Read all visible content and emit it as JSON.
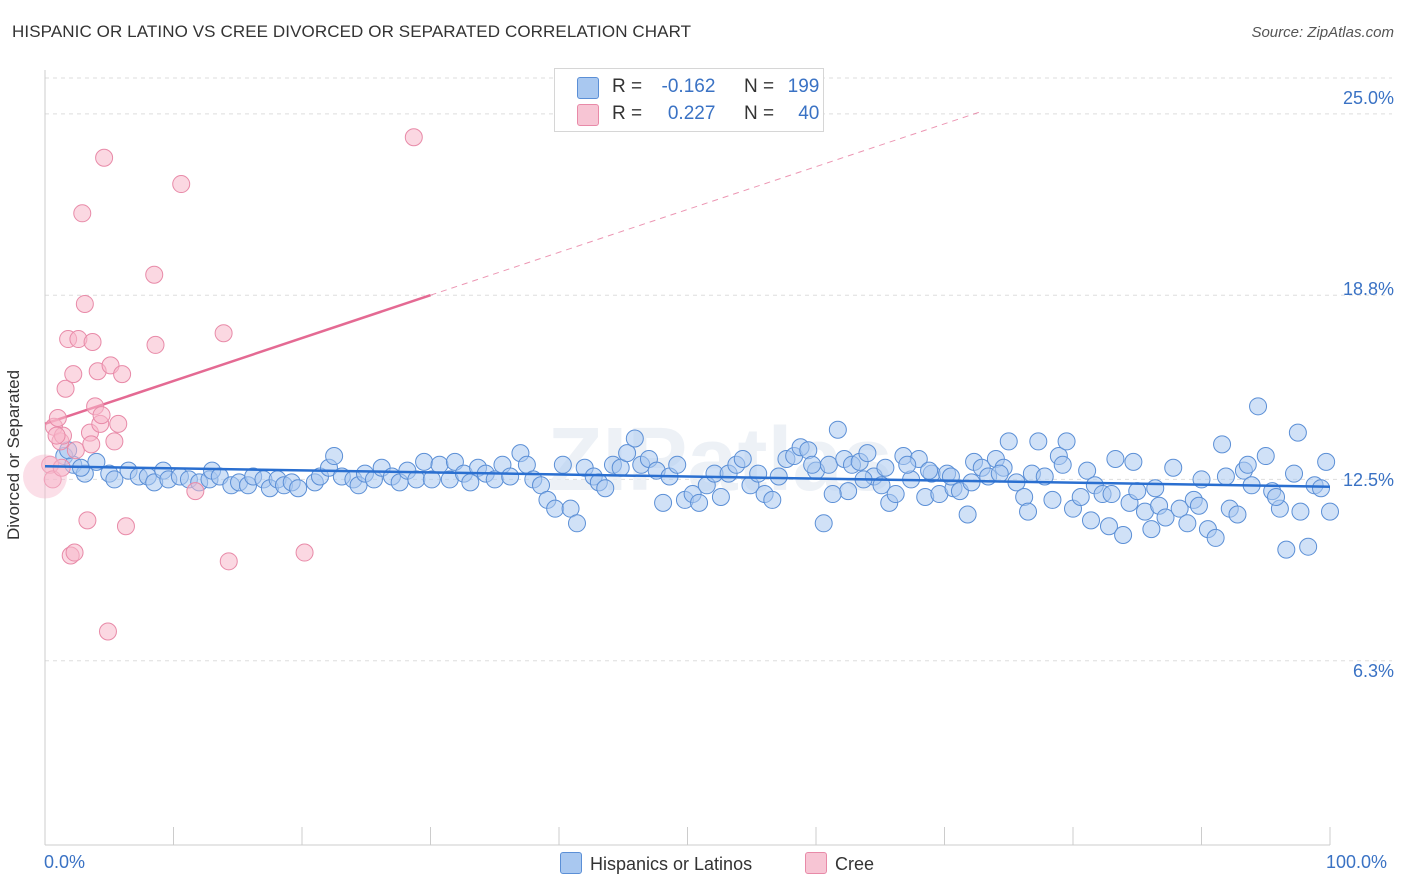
{
  "title": "HISPANIC OR LATINO VS CREE DIVORCED OR SEPARATED CORRELATION CHART",
  "source": "Source: ZipAtlas.com",
  "watermark": "ZIPatlas",
  "legend_top": {
    "rows": [
      {
        "r_label": "R =",
        "r_value": "-0.162",
        "n_label": "N =",
        "n_value": "199"
      },
      {
        "r_label": "R =",
        "r_value": "0.227",
        "n_label": "N =",
        "n_value": "40"
      }
    ]
  },
  "legend_bottom": [
    "Hispanics or Latinos",
    "Cree"
  ],
  "colors": {
    "blue_fill": "#a9c8f0",
    "blue_stroke": "#5b8fd6",
    "blue_line": "#2a6fd0",
    "pink_fill": "#f7b8cb",
    "pink_stroke": "#e88aa8",
    "pink_line": "#e46a93",
    "grid": "#dddddd",
    "tick_text": "#3a72c4"
  },
  "chart_data": {
    "type": "scatter",
    "xlabel": "",
    "ylabel": "Divorced or Separated",
    "xlim": [
      0,
      100
    ],
    "ylim": [
      0,
      26.5
    ],
    "y_ticks": [
      6.3,
      12.5,
      18.8,
      25.0
    ],
    "y_tick_labels": [
      "6.3%",
      "12.5%",
      "18.8%",
      "25.0%"
    ],
    "x_tick_labels": [
      "0.0%",
      "100.0%"
    ],
    "grid": true,
    "legend_position": "top-center",
    "series": [
      {
        "name": "Hispanics or Latinos",
        "trend": {
          "x0": 0,
          "y0": 12.95,
          "x1": 100,
          "y1": 12.25,
          "dashed_extension": false
        },
        "points": [
          [
            1.5,
            13.3
          ],
          [
            2.2,
            13.0
          ],
          [
            1.8,
            13.5
          ],
          [
            3.1,
            12.7
          ],
          [
            2.8,
            12.9
          ],
          [
            4.0,
            13.1
          ],
          [
            5.0,
            12.7
          ],
          [
            5.4,
            12.5
          ],
          [
            6.5,
            12.8
          ],
          [
            7.3,
            12.6
          ],
          [
            8.0,
            12.6
          ],
          [
            8.5,
            12.4
          ],
          [
            9.2,
            12.8
          ],
          [
            9.6,
            12.5
          ],
          [
            10.5,
            12.6
          ],
          [
            11.2,
            12.5
          ],
          [
            12.0,
            12.4
          ],
          [
            12.8,
            12.5
          ],
          [
            13.0,
            12.8
          ],
          [
            13.6,
            12.6
          ],
          [
            14.5,
            12.3
          ],
          [
            15.1,
            12.4
          ],
          [
            15.8,
            12.3
          ],
          [
            16.2,
            12.6
          ],
          [
            17.0,
            12.5
          ],
          [
            17.5,
            12.2
          ],
          [
            18.1,
            12.5
          ],
          [
            18.6,
            12.3
          ],
          [
            19.2,
            12.4
          ],
          [
            19.7,
            12.2
          ],
          [
            21.0,
            12.4
          ],
          [
            21.4,
            12.6
          ],
          [
            22.1,
            12.9
          ],
          [
            22.5,
            13.3
          ],
          [
            23.1,
            12.6
          ],
          [
            24.0,
            12.5
          ],
          [
            24.4,
            12.3
          ],
          [
            24.9,
            12.7
          ],
          [
            25.6,
            12.5
          ],
          [
            26.2,
            12.9
          ],
          [
            27.0,
            12.6
          ],
          [
            27.6,
            12.4
          ],
          [
            28.2,
            12.8
          ],
          [
            28.9,
            12.5
          ],
          [
            29.5,
            13.1
          ],
          [
            30.1,
            12.5
          ],
          [
            30.7,
            13.0
          ],
          [
            31.5,
            12.5
          ],
          [
            31.9,
            13.1
          ],
          [
            32.6,
            12.7
          ],
          [
            33.1,
            12.4
          ],
          [
            33.7,
            12.9
          ],
          [
            34.3,
            12.7
          ],
          [
            35.0,
            12.5
          ],
          [
            35.6,
            13.0
          ],
          [
            36.2,
            12.6
          ],
          [
            37.0,
            13.4
          ],
          [
            37.5,
            13.0
          ],
          [
            38.0,
            12.5
          ],
          [
            38.6,
            12.3
          ],
          [
            39.1,
            11.8
          ],
          [
            39.7,
            11.5
          ],
          [
            40.3,
            13.0
          ],
          [
            40.9,
            11.5
          ],
          [
            41.4,
            11.0
          ],
          [
            42.0,
            12.9
          ],
          [
            42.7,
            12.6
          ],
          [
            43.1,
            12.4
          ],
          [
            43.6,
            12.2
          ],
          [
            44.2,
            13.0
          ],
          [
            44.8,
            12.9
          ],
          [
            45.3,
            13.4
          ],
          [
            45.9,
            13.9
          ],
          [
            46.4,
            13.0
          ],
          [
            47.0,
            13.2
          ],
          [
            47.6,
            12.8
          ],
          [
            48.1,
            11.7
          ],
          [
            48.6,
            12.6
          ],
          [
            49.2,
            13.0
          ],
          [
            49.8,
            11.8
          ],
          [
            50.4,
            12.0
          ],
          [
            50.9,
            11.7
          ],
          [
            51.5,
            12.3
          ],
          [
            52.1,
            12.7
          ],
          [
            52.6,
            11.9
          ],
          [
            53.2,
            12.7
          ],
          [
            53.8,
            13.0
          ],
          [
            54.3,
            13.2
          ],
          [
            54.9,
            12.3
          ],
          [
            55.5,
            12.7
          ],
          [
            56.0,
            12.0
          ],
          [
            56.6,
            11.8
          ],
          [
            57.1,
            12.6
          ],
          [
            57.7,
            13.2
          ],
          [
            58.3,
            13.3
          ],
          [
            58.8,
            13.6
          ],
          [
            59.4,
            13.5
          ],
          [
            60.0,
            12.8
          ],
          [
            60.6,
            11.0
          ],
          [
            61.0,
            13.0
          ],
          [
            61.7,
            14.2
          ],
          [
            62.2,
            13.2
          ],
          [
            62.8,
            13.0
          ],
          [
            63.4,
            13.1
          ],
          [
            64.0,
            13.4
          ],
          [
            64.5,
            12.6
          ],
          [
            65.1,
            12.3
          ],
          [
            65.7,
            11.7
          ],
          [
            66.2,
            12.0
          ],
          [
            66.8,
            13.3
          ],
          [
            67.4,
            12.5
          ],
          [
            68.0,
            13.2
          ],
          [
            68.5,
            11.9
          ],
          [
            69.0,
            12.7
          ],
          [
            69.6,
            12.0
          ],
          [
            70.2,
            12.7
          ],
          [
            70.7,
            12.2
          ],
          [
            71.2,
            12.1
          ],
          [
            71.8,
            11.3
          ],
          [
            72.3,
            13.1
          ],
          [
            72.9,
            12.9
          ],
          [
            73.4,
            12.6
          ],
          [
            74.0,
            13.2
          ],
          [
            74.6,
            12.9
          ],
          [
            75.0,
            13.8
          ],
          [
            75.6,
            12.4
          ],
          [
            76.2,
            11.9
          ],
          [
            76.8,
            12.7
          ],
          [
            77.3,
            13.8
          ],
          [
            77.8,
            12.6
          ],
          [
            78.4,
            11.8
          ],
          [
            78.9,
            13.3
          ],
          [
            79.5,
            13.8
          ],
          [
            80.0,
            11.5
          ],
          [
            80.6,
            11.9
          ],
          [
            81.1,
            12.8
          ],
          [
            81.7,
            12.3
          ],
          [
            82.3,
            12.0
          ],
          [
            82.8,
            10.9
          ],
          [
            83.3,
            13.2
          ],
          [
            83.9,
            10.6
          ],
          [
            84.4,
            11.7
          ],
          [
            85.0,
            12.1
          ],
          [
            85.6,
            11.4
          ],
          [
            86.1,
            10.8
          ],
          [
            86.7,
            11.6
          ],
          [
            87.2,
            11.2
          ],
          [
            87.8,
            12.9
          ],
          [
            88.3,
            11.5
          ],
          [
            88.9,
            11.0
          ],
          [
            89.4,
            11.8
          ],
          [
            90.0,
            12.5
          ],
          [
            90.5,
            10.8
          ],
          [
            91.1,
            10.5
          ],
          [
            91.6,
            13.7
          ],
          [
            92.2,
            11.5
          ],
          [
            92.8,
            11.3
          ],
          [
            93.3,
            12.8
          ],
          [
            93.9,
            12.3
          ],
          [
            94.4,
            15.0
          ],
          [
            95.0,
            13.3
          ],
          [
            95.5,
            12.1
          ],
          [
            96.1,
            11.5
          ],
          [
            96.6,
            10.1
          ],
          [
            97.2,
            12.7
          ],
          [
            97.7,
            11.4
          ],
          [
            98.3,
            10.2
          ],
          [
            98.8,
            12.3
          ],
          [
            99.3,
            12.2
          ],
          [
            99.7,
            13.1
          ],
          [
            100.0,
            11.4
          ],
          [
            97.5,
            14.1
          ],
          [
            95.8,
            11.9
          ],
          [
            93.6,
            13.0
          ],
          [
            91.9,
            12.6
          ],
          [
            89.8,
            11.6
          ],
          [
            86.4,
            12.2
          ],
          [
            84.7,
            13.1
          ],
          [
            83.0,
            12.0
          ],
          [
            81.4,
            11.1
          ],
          [
            79.2,
            13.0
          ],
          [
            76.5,
            11.4
          ],
          [
            74.3,
            12.7
          ],
          [
            72.1,
            12.4
          ],
          [
            70.5,
            12.6
          ],
          [
            68.8,
            12.8
          ],
          [
            67.1,
            13.0
          ],
          [
            65.4,
            12.9
          ],
          [
            63.7,
            12.5
          ],
          [
            62.5,
            12.1
          ],
          [
            61.3,
            12.0
          ],
          [
            59.7,
            13.0
          ]
        ]
      },
      {
        "name": "Cree",
        "trend": {
          "x0": 0,
          "y0": 14.4,
          "x1": 30,
          "y1": 18.8,
          "dashed_extension": true,
          "dash_to_x": 73,
          "dash_to_y": 25.1
        },
        "points": [
          [
            0.4,
            13.0
          ],
          [
            0.6,
            12.5
          ],
          [
            0.7,
            14.3
          ],
          [
            1.0,
            14.6
          ],
          [
            1.2,
            13.8
          ],
          [
            1.4,
            14.0
          ],
          [
            1.6,
            15.6
          ],
          [
            1.8,
            17.3
          ],
          [
            2.0,
            9.9
          ],
          [
            2.2,
            16.1
          ],
          [
            2.4,
            13.5
          ],
          [
            2.6,
            17.3
          ],
          [
            2.9,
            21.6
          ],
          [
            3.1,
            18.5
          ],
          [
            3.3,
            11.1
          ],
          [
            3.5,
            14.1
          ],
          [
            3.7,
            17.2
          ],
          [
            3.9,
            15.0
          ],
          [
            4.1,
            16.2
          ],
          [
            4.3,
            14.4
          ],
          [
            4.6,
            23.5
          ],
          [
            4.9,
            7.3
          ],
          [
            5.1,
            16.4
          ],
          [
            5.4,
            13.8
          ],
          [
            5.7,
            14.4
          ],
          [
            6.0,
            16.1
          ],
          [
            6.3,
            10.9
          ],
          [
            8.5,
            19.5
          ],
          [
            8.6,
            17.1
          ],
          [
            10.6,
            22.6
          ],
          [
            11.7,
            12.1
          ],
          [
            13.9,
            17.5
          ],
          [
            14.3,
            9.7
          ],
          [
            20.2,
            10.0
          ],
          [
            28.7,
            24.2
          ],
          [
            0.9,
            14.0
          ],
          [
            1.3,
            12.9
          ],
          [
            2.3,
            10.0
          ],
          [
            3.6,
            13.7
          ],
          [
            4.4,
            14.7
          ]
        ]
      }
    ]
  }
}
